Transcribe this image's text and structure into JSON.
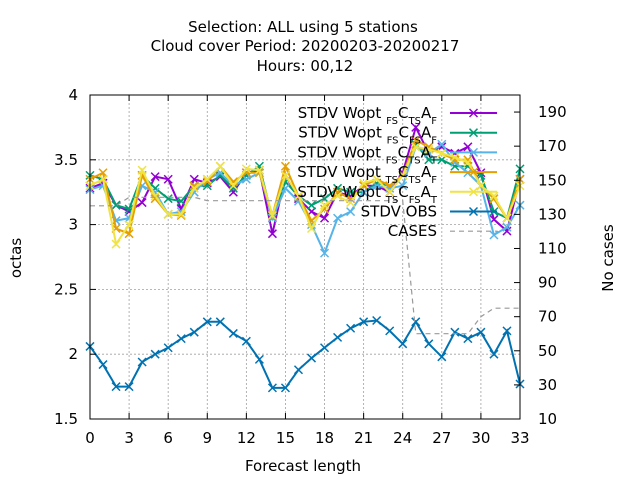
{
  "chart_data": {
    "type": "line",
    "title": [
      "Selection: ALL using     5 stations",
      "Cloud cover   Period: 20200203-20200217",
      "Hours:  00,12"
    ],
    "xlabel": "Forecast length",
    "ylabel": "octas",
    "y2label": "No cases",
    "xlim": [
      0,
      33
    ],
    "ylim": [
      1.5,
      4
    ],
    "y2lim": [
      10,
      200
    ],
    "xticks": [
      0,
      3,
      6,
      9,
      12,
      15,
      18,
      21,
      24,
      27,
      30,
      33
    ],
    "yticks": [
      1.5,
      2,
      2.5,
      3,
      3.5,
      4
    ],
    "y2ticks": [
      10,
      30,
      50,
      70,
      90,
      110,
      130,
      150,
      170,
      190
    ],
    "ytick_labels": [
      "1.5",
      "2",
      "2.5",
      "3",
      "3.5",
      "4"
    ],
    "grid": true,
    "legend_position": "top-right",
    "x": [
      0,
      1,
      2,
      3,
      4,
      5,
      6,
      7,
      8,
      9,
      10,
      11,
      12,
      13,
      14,
      15,
      16,
      17,
      18,
      19,
      20,
      21,
      22,
      23,
      24,
      25,
      26,
      27,
      28,
      29,
      30,
      31,
      32,
      33
    ],
    "series": [
      {
        "name": "STDV Wopt",
        "sub1": "FS",
        "mid": "C",
        "sub2": "TS",
        "end": "A",
        "sub3": "F",
        "color": "#9400d3",
        "marker": "x",
        "axis": "y1",
        "values": [
          3.28,
          3.32,
          3.15,
          3.1,
          3.17,
          3.37,
          3.35,
          3.12,
          3.35,
          3.32,
          3.37,
          3.25,
          3.4,
          3.42,
          2.93,
          3.38,
          3.2,
          3.1,
          3.05,
          3.25,
          3.22,
          3.3,
          3.3,
          3.25,
          3.4,
          3.75,
          3.55,
          3.6,
          3.55,
          3.6,
          3.4,
          3.04,
          2.95,
          3.35
        ]
      },
      {
        "name": "STDV Wopt",
        "sub1": "FS",
        "mid": "C",
        "sub2": "FS",
        "end": "A",
        "sub3": "F",
        "color": "#009e73",
        "marker": "x",
        "axis": "y1",
        "values": [
          3.38,
          3.35,
          3.15,
          3.12,
          3.38,
          3.28,
          3.2,
          3.18,
          3.3,
          3.3,
          3.38,
          3.28,
          3.38,
          3.45,
          3.05,
          3.33,
          3.22,
          3.15,
          3.2,
          3.28,
          3.25,
          3.25,
          3.32,
          3.3,
          3.38,
          3.62,
          3.5,
          3.5,
          3.45,
          3.45,
          3.38,
          3.1,
          3.05,
          3.43
        ]
      },
      {
        "name": "STDV Wopt",
        "sub1": "FS",
        "mid": "C",
        "sub2": "TS",
        "end": "A",
        "sub3": "T",
        "color": "#56b4e9",
        "marker": "x",
        "axis": "y1",
        "values": [
          3.27,
          3.3,
          3.03,
          3.05,
          3.3,
          3.25,
          3.08,
          3.1,
          3.25,
          3.35,
          3.4,
          3.3,
          3.35,
          3.4,
          3.05,
          3.28,
          3.18,
          3.0,
          2.78,
          3.05,
          3.1,
          3.25,
          3.3,
          3.28,
          3.3,
          3.6,
          3.55,
          3.62,
          3.48,
          3.4,
          3.3,
          2.92,
          2.98,
          3.15
        ]
      },
      {
        "name": "STDV Wopt",
        "sub1": "TS",
        "mid": "C",
        "sub2": "TS",
        "end": "A",
        "sub3": "F",
        "color": "#e69f00",
        "marker": "x",
        "axis": "y1",
        "values": [
          3.35,
          3.4,
          2.97,
          2.93,
          3.38,
          3.2,
          3.08,
          3.07,
          3.3,
          3.33,
          3.45,
          3.33,
          3.4,
          3.4,
          3.07,
          3.45,
          3.22,
          3.03,
          3.12,
          3.25,
          3.2,
          3.3,
          3.35,
          3.3,
          3.38,
          3.65,
          3.6,
          3.55,
          3.5,
          3.5,
          3.3,
          3.2,
          3.05,
          3.35
        ]
      },
      {
        "name": "STDV Wopt",
        "sub1": "TS",
        "mid": "C",
        "sub2": "FS",
        "end": "A",
        "sub3": "T",
        "color": "#f0e442",
        "marker": "x",
        "axis": "y1",
        "values": [
          3.3,
          3.35,
          2.85,
          3.0,
          3.42,
          3.22,
          3.08,
          3.08,
          3.28,
          3.35,
          3.45,
          3.3,
          3.43,
          3.42,
          3.07,
          3.38,
          3.22,
          2.97,
          3.15,
          3.22,
          3.17,
          3.32,
          3.35,
          3.25,
          3.38,
          3.6,
          3.58,
          3.55,
          3.52,
          3.48,
          3.3,
          3.22,
          3.05,
          3.3
        ]
      },
      {
        "name": "STDV OBS",
        "color": "#0072b2",
        "marker": "x",
        "axis": "y1",
        "values": [
          2.06,
          1.92,
          1.75,
          1.75,
          1.94,
          2.0,
          2.05,
          2.12,
          2.17,
          2.25,
          2.25,
          2.16,
          2.1,
          1.96,
          1.74,
          1.74,
          1.88,
          1.97,
          2.05,
          2.13,
          2.2,
          2.25,
          2.26,
          2.18,
          2.08,
          2.25,
          2.08,
          1.98,
          2.17,
          2.12,
          2.17,
          2.0,
          2.18,
          1.77
        ]
      },
      {
        "name": "CASES",
        "color": "#999999",
        "dashed": true,
        "axis": "y2",
        "values": [
          135,
          135,
          135,
          140,
          140,
          140,
          140,
          140,
          140,
          138,
          138,
          138,
          138,
          138,
          138,
          138,
          138,
          138,
          138,
          138,
          138,
          138,
          138,
          138,
          138,
          60,
          60,
          60,
          60,
          60,
          70,
          75,
          75,
          75
        ]
      }
    ]
  }
}
